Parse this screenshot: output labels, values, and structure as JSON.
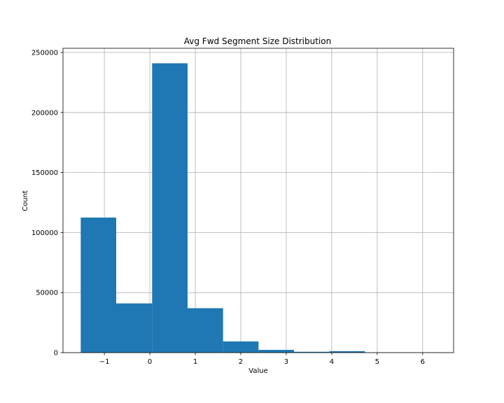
{
  "chart_data": {
    "type": "bar",
    "title": "Avg Fwd Segment Size Distribution",
    "xlabel": "Value",
    "ylabel": "Count",
    "bins": [
      {
        "x0": -1.52,
        "x1": -0.74,
        "value": 112500
      },
      {
        "x0": -0.74,
        "x1": 0.05,
        "value": 41000
      },
      {
        "x0": 0.05,
        "x1": 0.83,
        "value": 241000
      },
      {
        "x0": 0.83,
        "x1": 1.61,
        "value": 37000
      },
      {
        "x0": 1.61,
        "x1": 2.39,
        "value": 9300
      },
      {
        "x0": 2.39,
        "x1": 3.17,
        "value": 2300
      },
      {
        "x0": 3.17,
        "x1": 3.95,
        "value": 700
      },
      {
        "x0": 3.95,
        "x1": 4.73,
        "value": 1200
      },
      {
        "x0": 4.73,
        "x1": 5.51,
        "value": 100
      },
      {
        "x0": 5.51,
        "x1": 6.29,
        "value": 50
      }
    ],
    "xlim": [
      -1.91,
      6.68
    ],
    "ylim": [
      0,
      253500
    ],
    "xticks": [
      -1,
      0,
      1,
      2,
      3,
      4,
      5,
      6
    ],
    "xtick_labels": [
      "−1",
      "0",
      "1",
      "2",
      "3",
      "4",
      "5",
      "6"
    ],
    "yticks": [
      0,
      50000,
      100000,
      150000,
      200000,
      250000
    ],
    "ytick_labels": [
      "0",
      "50000",
      "100000",
      "150000",
      "200000",
      "250000"
    ],
    "grid": true,
    "bar_color": "#1f77b4"
  }
}
